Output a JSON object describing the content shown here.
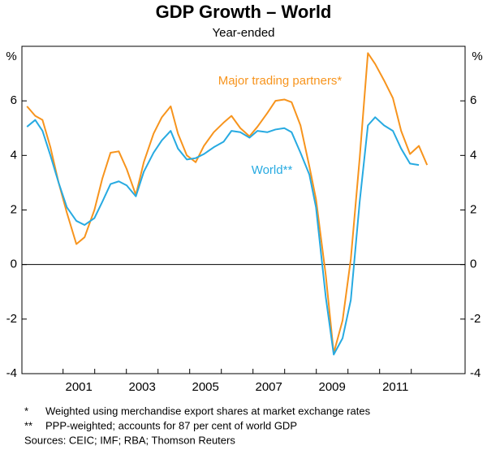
{
  "chart_data": {
    "type": "line",
    "title": "GDP Growth – World",
    "subtitle": "Year-ended",
    "ylabel": "%",
    "xlim": [
      1999.7,
      2013.7
    ],
    "xticks": [
      {
        "value": 2001.5,
        "label": "2001"
      },
      {
        "value": 2003.5,
        "label": "2003"
      },
      {
        "value": 2005.5,
        "label": "2005"
      },
      {
        "value": 2007.5,
        "label": "2007"
      },
      {
        "value": 2009.5,
        "label": "2009"
      },
      {
        "value": 2011.5,
        "label": "2011"
      }
    ],
    "ylim": [
      -4,
      8
    ],
    "yticks": [
      -4,
      -2,
      0,
      2,
      4,
      6
    ],
    "x": [
      1999.86,
      2000.12,
      2000.35,
      2000.6,
      2000.86,
      2001.12,
      2001.42,
      2001.68,
      2001.99,
      2002.24,
      2002.5,
      2002.76,
      2003.01,
      2003.3,
      2003.55,
      2003.86,
      2004.12,
      2004.4,
      2004.63,
      2004.91,
      2005.19,
      2005.45,
      2005.76,
      2006.07,
      2006.32,
      2006.6,
      2006.89,
      2007.14,
      2007.45,
      2007.71,
      2007.99,
      2008.22,
      2008.5,
      2008.78,
      2008.99,
      2009.3,
      2009.55,
      2009.83,
      2010.09,
      2010.37,
      2010.63,
      2010.86,
      2011.14,
      2011.42,
      2011.68,
      2011.96,
      2012.24,
      2012.5
    ],
    "series": [
      {
        "name": "Major trading partners*",
        "color": "#f7941d",
        "values": [
          5.8,
          5.45,
          5.3,
          4.3,
          3.0,
          1.9,
          0.75,
          1.0,
          2.0,
          3.15,
          4.1,
          4.15,
          3.5,
          2.55,
          3.75,
          4.8,
          5.4,
          5.8,
          4.8,
          4.0,
          3.75,
          4.35,
          4.85,
          5.2,
          5.45,
          5.0,
          4.7,
          5.05,
          5.55,
          6.0,
          6.05,
          5.95,
          5.1,
          3.6,
          2.4,
          -0.4,
          -3.25,
          -2.05,
          0.2,
          3.9,
          7.75,
          7.35,
          6.75,
          6.1,
          4.9,
          4.05,
          4.35,
          3.65
        ]
      },
      {
        "name": "World**",
        "color": "#27aae1",
        "values": [
          5.05,
          5.3,
          4.9,
          4.0,
          3.0,
          2.1,
          1.6,
          1.45,
          1.7,
          2.3,
          2.95,
          3.05,
          2.9,
          2.5,
          3.4,
          4.1,
          4.55,
          4.9,
          4.25,
          3.85,
          3.9,
          4.05,
          4.3,
          4.5,
          4.9,
          4.85,
          4.65,
          4.9,
          4.85,
          4.95,
          5.0,
          4.85,
          4.1,
          3.3,
          2.1,
          -1.2,
          -3.3,
          -2.7,
          -1.3,
          2.3,
          5.1,
          5.4,
          5.1,
          4.9,
          4.25,
          3.7,
          3.65,
          null
        ]
      }
    ],
    "notes": [
      {
        "mark": "*",
        "text": "Weighted using merchandise export shares at market exchange rates"
      },
      {
        "mark": "**",
        "text": "PPP-weighted; accounts for 87 per cent of world GDP"
      }
    ],
    "sources": "Sources: CEIC; IMF; RBA; Thomson Reuters"
  }
}
